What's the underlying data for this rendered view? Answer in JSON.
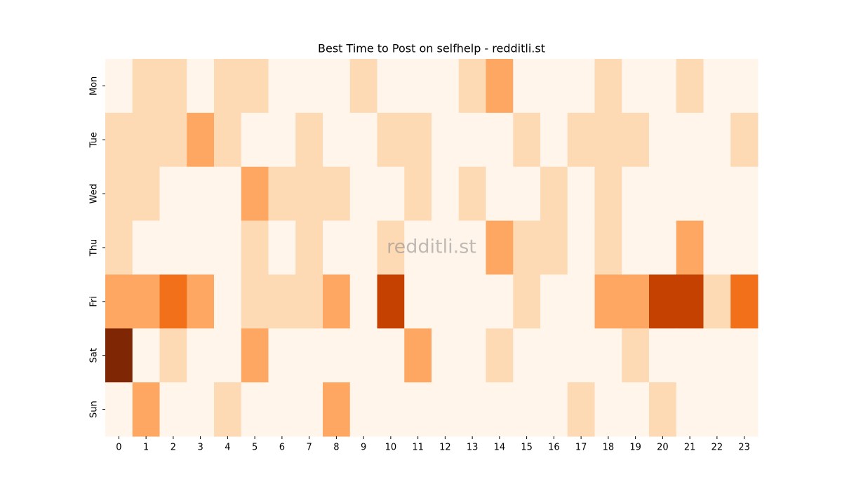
{
  "chart_data": {
    "type": "heatmap",
    "title": "Best Time to Post on selfhelp - redditli.st",
    "watermark": "redditli.st",
    "x": [
      0,
      1,
      2,
      3,
      4,
      5,
      6,
      7,
      8,
      9,
      10,
      11,
      12,
      13,
      14,
      15,
      16,
      17,
      18,
      19,
      20,
      21,
      22,
      23
    ],
    "categories": [
      "Mon",
      "Tue",
      "Wed",
      "Thu",
      "Fri",
      "Sat",
      "Sun"
    ],
    "colors": [
      "#fff5eb",
      "#fdd9b4",
      "#fda762",
      "#f3701b",
      "#c54102",
      "#7f2704"
    ],
    "values": [
      [
        0,
        1,
        1,
        0,
        1,
        1,
        0,
        0,
        0,
        1,
        0,
        0,
        0,
        1,
        2,
        0,
        0,
        0,
        1,
        0,
        0,
        1,
        0,
        0
      ],
      [
        1,
        1,
        1,
        2,
        1,
        0,
        0,
        1,
        0,
        0,
        1,
        1,
        0,
        0,
        0,
        1,
        0,
        1,
        1,
        1,
        0,
        0,
        0,
        1
      ],
      [
        1,
        1,
        0,
        0,
        0,
        2,
        1,
        1,
        1,
        0,
        0,
        1,
        0,
        1,
        0,
        0,
        1,
        0,
        1,
        0,
        0,
        0,
        0,
        0
      ],
      [
        1,
        0,
        0,
        0,
        0,
        1,
        0,
        1,
        0,
        0,
        1,
        0,
        0,
        0,
        2,
        1,
        1,
        0,
        1,
        0,
        0,
        2,
        0,
        0
      ],
      [
        2,
        2,
        3,
        2,
        0,
        1,
        1,
        1,
        2,
        0,
        4,
        0,
        0,
        0,
        0,
        1,
        0,
        0,
        2,
        2,
        4,
        4,
        1,
        3
      ],
      [
        5,
        0,
        1,
        0,
        0,
        2,
        0,
        0,
        0,
        0,
        0,
        2,
        0,
        0,
        1,
        0,
        0,
        0,
        0,
        1,
        0,
        0,
        0,
        0
      ],
      [
        0,
        2,
        0,
        0,
        1,
        0,
        0,
        0,
        2,
        0,
        0,
        0,
        0,
        0,
        0,
        0,
        0,
        1,
        0,
        0,
        1,
        0,
        0,
        0
      ]
    ]
  }
}
